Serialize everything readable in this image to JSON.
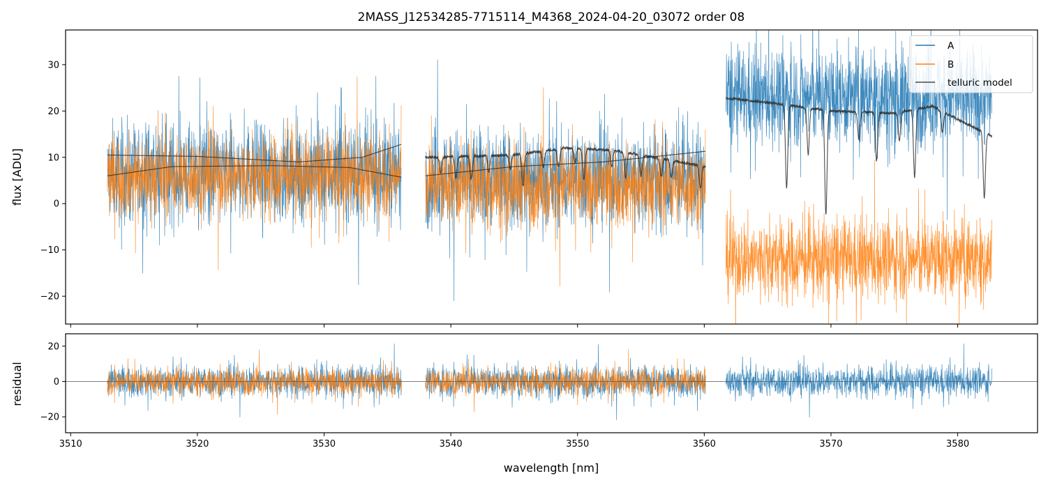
{
  "chart_data": [
    {
      "type": "line",
      "panel": "flux",
      "title": "2MASS_J12534285-7715114_M4368_2024-04-20_03072  order 08",
      "xlabel": "",
      "ylabel": "flux [ADU]",
      "xlim": [
        3509.6,
        3586.3
      ],
      "ylim": [
        -26,
        37.5
      ],
      "y_ticks": [
        -20,
        -10,
        0,
        10,
        20,
        30
      ],
      "y_tick_labels": [
        "−20",
        "−10",
        "0",
        "10",
        "20",
        "30"
      ],
      "x_ticks": [
        3510,
        3520,
        3530,
        3540,
        3550,
        3560,
        3570,
        3580
      ],
      "segments": [
        [
          3512.9,
          3536.1
        ],
        [
          3538.0,
          3560.1
        ],
        [
          3561.7,
          3582.7
        ]
      ],
      "series": [
        {
          "name": "A",
          "color": "#1f77b4",
          "segment_levels": [
            6.5,
            5.5,
            23.0
          ],
          "noise_amplitude": 17
        },
        {
          "name": "B",
          "color": "#ff7f0e",
          "segment_levels": [
            6.0,
            4.0,
            -12.0
          ],
          "noise_amplitude": 14
        },
        {
          "name": "telluric model",
          "color": "#2b2b2b",
          "continuum": [
            [
              3512.9,
              10.5
            ],
            [
              3520,
              10.2
            ],
            [
              3528,
              9.0
            ],
            [
              3533,
              10.0
            ],
            [
              3536.1,
              12.8
            ]
          ],
          "continuum_b": [
            [
              3512.9,
              6.0
            ],
            [
              3518,
              8.0
            ],
            [
              3526,
              8.2
            ],
            [
              3532,
              7.8
            ],
            [
              3536.1,
              5.7
            ]
          ],
          "seg2_continuum": [
            [
              3538.0,
              10.0
            ],
            [
              3545,
              10.5
            ],
            [
              3549,
              12.0
            ],
            [
              3553,
              11.5
            ],
            [
              3560.1,
              8.0
            ]
          ],
          "seg2_continuum_b": [
            [
              3538.0,
              6.0
            ],
            [
              3545,
              8.0
            ],
            [
              3552,
              9.0
            ],
            [
              3560.1,
              11.3
            ]
          ],
          "seg3_continuum": [
            [
              3561.7,
              22.8
            ],
            [
              3566,
              21.5
            ],
            [
              3570,
              20.0
            ],
            [
              3575,
              19.5
            ],
            [
              3578,
              21.0
            ],
            [
              3582.7,
              14.5
            ]
          ],
          "absorption_lines": [
            [
              3539.2,
              3.5
            ],
            [
              3540.4,
              4.5
            ],
            [
              3541.6,
              5.0
            ],
            [
              3543.0,
              3.5
            ],
            [
              3544.7,
              3.0
            ],
            [
              3545.7,
              7.0
            ],
            [
              3547.3,
              3.5
            ],
            [
              3548.5,
              4.0
            ],
            [
              3549.8,
              3.0
            ],
            [
              3550.5,
              6.5
            ],
            [
              3552.7,
              3.5
            ],
            [
              3553.8,
              5.5
            ],
            [
              3555.0,
              4.5
            ],
            [
              3556.6,
              4.0
            ],
            [
              3557.4,
              3.5
            ],
            [
              3559.7,
              5.0
            ],
            [
              3566.5,
              18.0
            ],
            [
              3568.2,
              10.0
            ],
            [
              3569.6,
              22.5
            ],
            [
              3572.2,
              6.0
            ],
            [
              3573.6,
              10.5
            ],
            [
              3575.4,
              6.0
            ],
            [
              3576.6,
              14.5
            ],
            [
              3578.8,
              4.5
            ],
            [
              3582.1,
              14.0
            ]
          ]
        }
      ],
      "legend": {
        "placement": "top-right",
        "entries": [
          "A",
          "B",
          "telluric model"
        ]
      }
    },
    {
      "type": "line",
      "panel": "residual",
      "xlabel": "wavelength [nm]",
      "ylabel": "residual",
      "xlim": [
        3509.6,
        3586.3
      ],
      "ylim": [
        -29,
        27
      ],
      "y_ticks": [
        -20,
        0,
        20
      ],
      "y_tick_labels": [
        "−20",
        "0",
        "20"
      ],
      "x_ticks": [
        3510,
        3520,
        3530,
        3540,
        3550,
        3560,
        3570,
        3580
      ],
      "x_tick_labels": [
        "3510",
        "3520",
        "3530",
        "3540",
        "3550",
        "3560",
        "3570",
        "3580"
      ],
      "zero_line": true,
      "series": [
        {
          "name": "A",
          "color": "#1f77b4",
          "segments": [
            [
              3512.9,
              3536.1
            ],
            [
              3538.0,
              3560.1
            ],
            [
              3561.7,
              3582.7
            ]
          ],
          "noise_amplitude": 14
        },
        {
          "name": "B",
          "color": "#ff7f0e",
          "segments": [
            [
              3512.9,
              3536.1
            ],
            [
              3538.0,
              3560.1
            ]
          ],
          "noise_amplitude": 12
        }
      ]
    }
  ]
}
